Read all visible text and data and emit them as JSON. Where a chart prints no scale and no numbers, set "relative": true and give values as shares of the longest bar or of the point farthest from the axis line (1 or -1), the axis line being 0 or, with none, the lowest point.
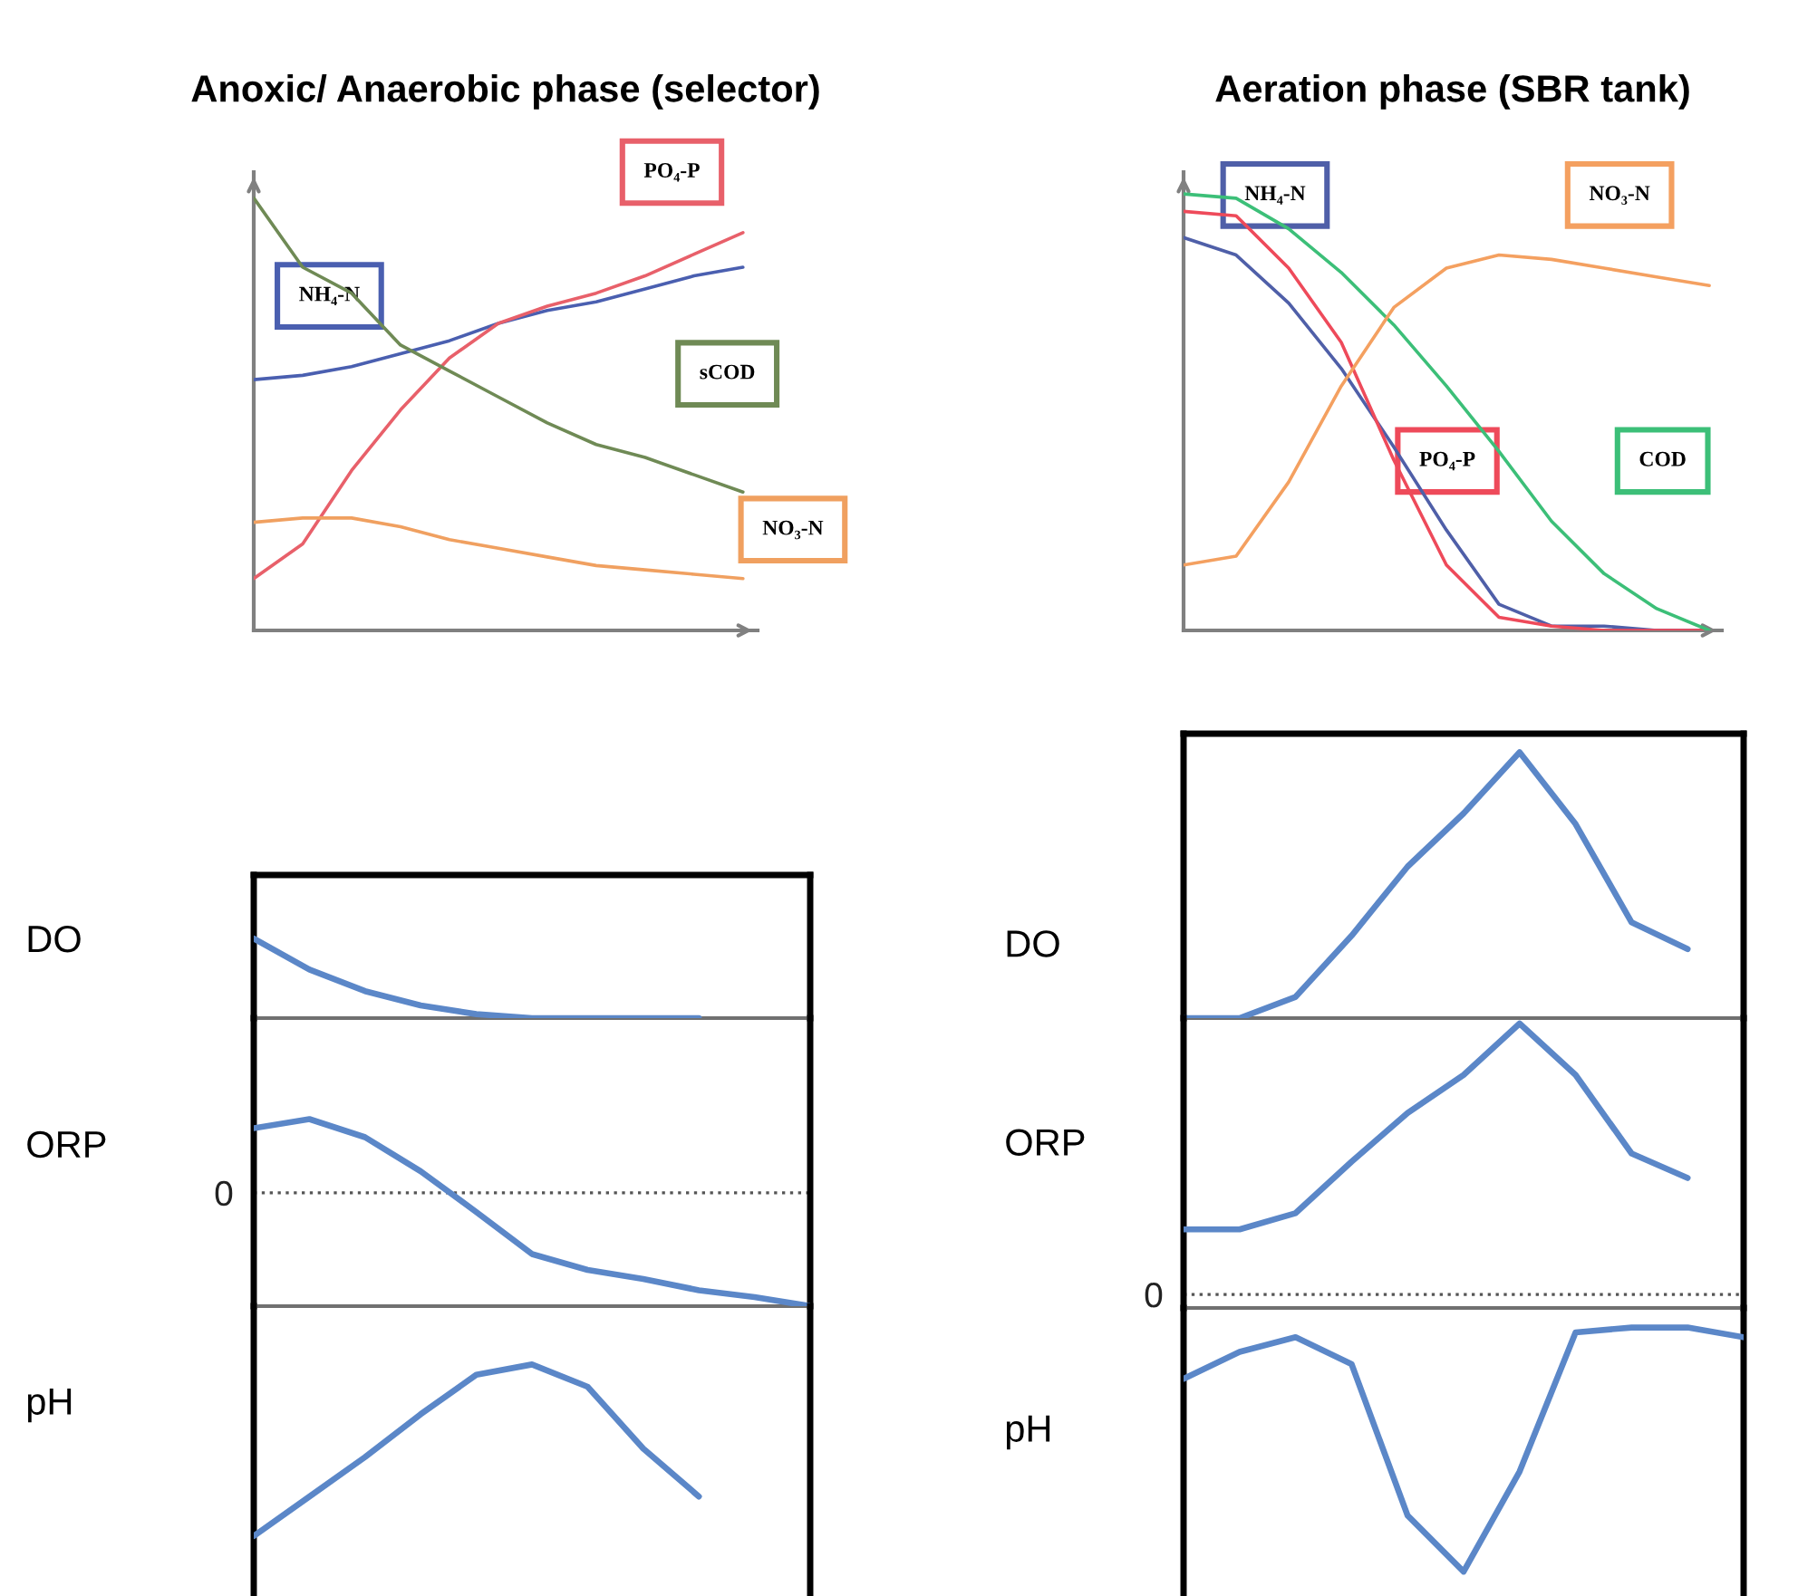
{
  "chart_data": [
    {
      "type": "line",
      "relative": true,
      "title": "Anoxic/ Anaerobic phase (selector)",
      "categories": [
        null,
        null,
        null,
        null,
        null,
        null,
        null,
        null,
        null,
        null,
        null
      ],
      "series": [
        {
          "name": "NH₄-N",
          "color": "#4a5fb0",
          "values": [
            0.58,
            0.59,
            0.61,
            0.64,
            0.67,
            0.71,
            0.74,
            0.76,
            0.79,
            0.82,
            0.84
          ]
        },
        {
          "name": "PO₄-P",
          "color": "#e8606a",
          "values": [
            0.12,
            0.2,
            0.37,
            0.51,
            0.63,
            0.71,
            0.75,
            0.78,
            0.82,
            0.87,
            0.92
          ]
        },
        {
          "name": "sCOD",
          "color": "#6f8a55",
          "values": [
            1,
            0.84,
            0.78,
            0.66,
            0.6,
            0.54,
            0.48,
            0.43,
            0.4,
            0.36,
            0.32
          ]
        },
        {
          "name": "NO₃-N",
          "color": "#f0a060",
          "values": [
            0.25,
            0.26,
            0.26,
            0.24,
            0.21,
            0.19,
            0.17,
            0.15,
            0.14,
            0.13,
            0.12
          ]
        }
      ]
    },
    {
      "type": "line",
      "relative": true,
      "title": "Aeration phase (SBR tank)",
      "categories": [
        null,
        null,
        null,
        null,
        null,
        null,
        null,
        null,
        null,
        null,
        null
      ],
      "series": [
        {
          "name": "NH₄-N",
          "color": "#4f5fa8",
          "values": [
            0.9,
            0.86,
            0.75,
            0.6,
            0.42,
            0.23,
            0.06,
            0.01,
            0.01,
            0,
            0
          ]
        },
        {
          "name": "PO₄-P",
          "color": "#ee4a5a",
          "values": [
            0.96,
            0.95,
            0.83,
            0.66,
            0.39,
            0.15,
            0.03,
            0.01,
            0,
            0,
            0
          ]
        },
        {
          "name": "COD",
          "color": "#3cbf78",
          "values": [
            1,
            0.99,
            0.92,
            0.82,
            0.7,
            0.56,
            0.41,
            0.25,
            0.13,
            0.05,
            0
          ]
        },
        {
          "name": "NO₃-N",
          "color": "#f4a060",
          "values": [
            0.15,
            0.17,
            0.34,
            0.56,
            0.74,
            0.83,
            0.86,
            0.85,
            0.83,
            0.81,
            0.79
          ]
        }
      ]
    },
    {
      "type": "line",
      "relative": true,
      "ylabel": "DO",
      "categories": [
        null,
        null,
        null,
        null,
        null,
        null,
        null,
        null,
        null,
        null,
        null
      ],
      "series": [
        {
          "color": "#5b87c8",
          "values": [
            1,
            0.61,
            0.34,
            0.16,
            0.05,
            0,
            0,
            0,
            0,
            null,
            null
          ]
        }
      ]
    },
    {
      "type": "line",
      "relative": true,
      "ylabel": "DO",
      "categories": [
        null,
        null,
        null,
        null,
        null,
        null,
        null,
        null,
        null,
        null,
        null
      ],
      "series": [
        {
          "color": "#5b87c8",
          "values": [
            0,
            0,
            0.08,
            0.31,
            0.57,
            0.77,
            1,
            0.73,
            0.36,
            0.26,
            null
          ]
        }
      ]
    },
    {
      "type": "line",
      "relative": true,
      "ylabel": "ORP",
      "ref_lines": [
        {
          "axis": "y",
          "value": 0,
          "label": "0",
          "line_style": "dotted"
        }
      ],
      "categories": [
        null,
        null,
        null,
        null,
        null,
        null,
        null,
        null,
        null,
        null,
        null
      ],
      "series": [
        {
          "color": "#5b87c8",
          "values": [
            0.57,
            0.65,
            0.49,
            0.19,
            -0.17,
            -0.54,
            -0.68,
            -0.76,
            -0.86,
            -0.92,
            -1
          ]
        }
      ]
    },
    {
      "type": "line",
      "relative": true,
      "ylabel": "ORP",
      "ref_lines": [
        {
          "axis": "y",
          "value": 0,
          "label": "0",
          "line_style": "dotted"
        }
      ],
      "categories": [
        null,
        null,
        null,
        null,
        null,
        null,
        null,
        null,
        null,
        null,
        null
      ],
      "series": [
        {
          "color": "#5b87c8",
          "values": [
            0.24,
            0.24,
            0.3,
            0.49,
            0.67,
            0.81,
            1,
            0.81,
            0.52,
            0.43,
            null
          ]
        }
      ]
    },
    {
      "type": "line",
      "relative": true,
      "ylabel": "pH",
      "categories": [
        null,
        null,
        null,
        null,
        null,
        null,
        null,
        null,
        null,
        null,
        null
      ],
      "series": [
        {
          "color": "#5b87c8",
          "values": [
            0,
            0.23,
            0.46,
            0.71,
            0.94,
            1,
            0.87,
            0.51,
            0.23,
            null,
            null
          ]
        }
      ]
    },
    {
      "type": "line",
      "relative": true,
      "ylabel": "pH",
      "categories": [
        null,
        null,
        null,
        null,
        null,
        null,
        null,
        null,
        null,
        null,
        null
      ],
      "series": [
        {
          "color": "#5b87c8",
          "values": [
            0.79,
            0.9,
            0.96,
            0.85,
            0.23,
            0,
            0.41,
            0.98,
            1,
            1,
            0.96
          ]
        }
      ]
    }
  ]
}
